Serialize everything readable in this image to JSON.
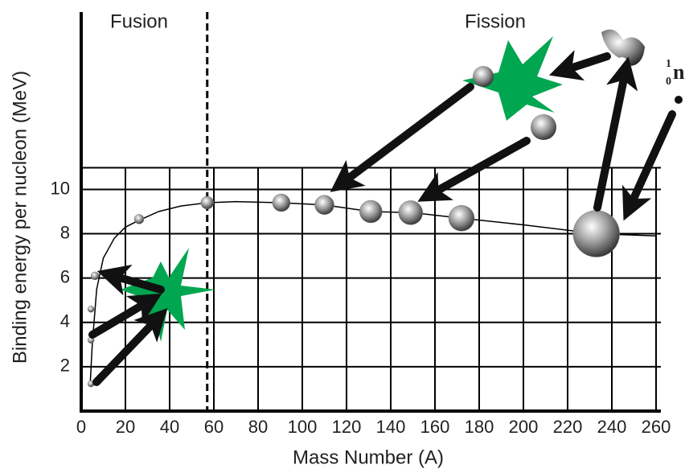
{
  "chart_data": {
    "type": "line",
    "xlabel": "Mass Number (A)",
    "ylabel": "Binding energy per nucleon (MeV)",
    "xlim": [
      0,
      260
    ],
    "ylim": [
      0,
      18
    ],
    "xticks": [
      0,
      20,
      40,
      60,
      80,
      100,
      120,
      140,
      160,
      180,
      200,
      220,
      240,
      260
    ],
    "yticks": [
      2,
      4,
      6,
      8,
      10
    ],
    "grid": true,
    "series": [
      {
        "color": "#000000",
        "x": [
          4,
          5,
          7,
          10,
          15,
          20,
          26,
          35,
          45,
          57,
          70,
          90,
          110,
          131,
          150,
          172,
          200,
          233,
          260
        ],
        "values": [
          1.1,
          3,
          5.5,
          6.9,
          7.8,
          8.3,
          8.6,
          9.0,
          9.25,
          9.4,
          9.45,
          9.4,
          9.3,
          9.0,
          8.95,
          8.7,
          8.4,
          8.0,
          7.9
        ]
      },
      {
        "color": "#808080",
        "x": [
          4.4,
          4.4,
          4.4,
          6.2,
          26.2,
          57,
          90.5,
          110,
          131,
          149,
          172,
          233,
          39,
          40
        ],
        "values": [
          1.23,
          3.2,
          4.6,
          6.1,
          8.66,
          9.4,
          9.4,
          9.3,
          9.0,
          8.95,
          8.7,
          8.0,
          5.2,
          4.9
        ],
        "sizes": [
          4,
          4,
          4,
          5,
          6,
          8,
          11,
          12,
          14,
          15,
          16,
          29,
          4,
          4
        ]
      }
    ],
    "divider_x": 57,
    "annotations": [
      "Fusion",
      "Fission"
    ],
    "neutron": {
      "symbol": "n",
      "mass": "1",
      "charge": "0"
    }
  }
}
